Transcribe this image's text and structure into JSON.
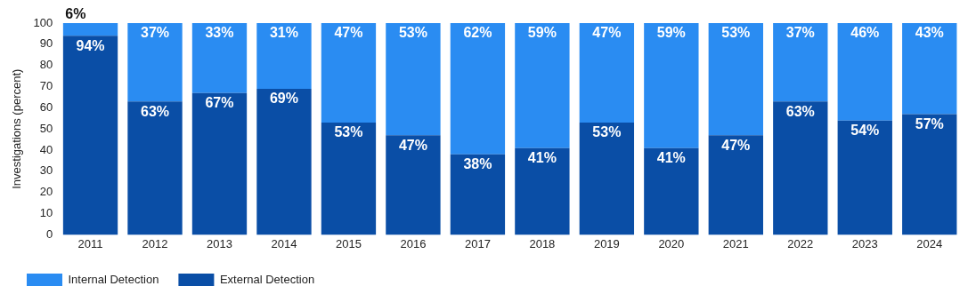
{
  "chart_data": {
    "type": "bar",
    "stacked": true,
    "ylabel": "Investigations (percent)",
    "categories": [
      "2011",
      "2012",
      "2013",
      "2014",
      "2015",
      "2016",
      "2017",
      "2018",
      "2019",
      "2020",
      "2021",
      "2022",
      "2023",
      "2024"
    ],
    "series": [
      {
        "name": "External Detection",
        "color": "#0a4ea6",
        "values": [
          94,
          63,
          67,
          69,
          53,
          47,
          38,
          41,
          53,
          41,
          47,
          63,
          54,
          57
        ],
        "value_labels": [
          "94%",
          "63%",
          "67%",
          "69%",
          "53%",
          "47%",
          "38%",
          "41%",
          "53%",
          "41%",
          "47%",
          "63%",
          "54%",
          "57%"
        ]
      },
      {
        "name": "Internal Detection",
        "color": "#2a8cf2",
        "values": [
          6,
          37,
          33,
          31,
          47,
          53,
          62,
          59,
          47,
          59,
          53,
          37,
          46,
          43
        ],
        "value_labels": [
          "6%",
          "37%",
          "33%",
          "31%",
          "47%",
          "53%",
          "62%",
          "59%",
          "47%",
          "59%",
          "53%",
          "37%",
          "46%",
          "43%"
        ]
      }
    ],
    "ylim": [
      0,
      100
    ],
    "yticks": [
      0,
      10,
      20,
      30,
      40,
      50,
      60,
      70,
      80,
      90,
      100
    ],
    "grid": false,
    "legend": "bottom left"
  }
}
